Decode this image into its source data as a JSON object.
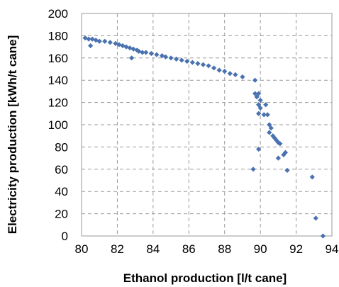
{
  "chart_data": {
    "type": "scatter",
    "title": "",
    "xlabel": "Ethanol production [l/t cane]",
    "ylabel": "Electricity production [kWh/t cane]",
    "xlim": [
      80,
      94
    ],
    "ylim": [
      0,
      200
    ],
    "x_ticks": [
      "80",
      "82",
      "84",
      "86",
      "88",
      "90",
      "92",
      "94"
    ],
    "y_ticks": [
      "0",
      "20",
      "40",
      "60",
      "80",
      "100",
      "120",
      "140",
      "160",
      "180",
      "200"
    ],
    "grid": true,
    "marker": "diamond",
    "color": "#4a72b0",
    "series": [
      {
        "points": [
          [
            80.2,
            178
          ],
          [
            80.4,
            177
          ],
          [
            80.6,
            177
          ],
          [
            80.8,
            176
          ],
          [
            81.0,
            175
          ],
          [
            80.5,
            171
          ],
          [
            81.3,
            175
          ],
          [
            81.6,
            174
          ],
          [
            81.9,
            173
          ],
          [
            82.1,
            172
          ],
          [
            82.3,
            171
          ],
          [
            82.5,
            170
          ],
          [
            82.7,
            169
          ],
          [
            82.9,
            168
          ],
          [
            83.1,
            167
          ],
          [
            83.2,
            166
          ],
          [
            83.4,
            165
          ],
          [
            83.6,
            165
          ],
          [
            83.9,
            164
          ],
          [
            84.2,
            163
          ],
          [
            84.5,
            162
          ],
          [
            84.7,
            161
          ],
          [
            82.8,
            160
          ],
          [
            85.0,
            160
          ],
          [
            85.3,
            159
          ],
          [
            85.6,
            158
          ],
          [
            85.9,
            157
          ],
          [
            86.2,
            156
          ],
          [
            86.5,
            155
          ],
          [
            86.8,
            154
          ],
          [
            87.1,
            153
          ],
          [
            87.4,
            151
          ],
          [
            87.7,
            149
          ],
          [
            88.0,
            148
          ],
          [
            88.3,
            146
          ],
          [
            88.6,
            145
          ],
          [
            89.0,
            143
          ],
          [
            89.7,
            140
          ],
          [
            89.7,
            128
          ],
          [
            89.9,
            128
          ],
          [
            89.8,
            125
          ],
          [
            90.0,
            122
          ],
          [
            90.3,
            118
          ],
          [
            89.9,
            118
          ],
          [
            90.0,
            115
          ],
          [
            90.2,
            109
          ],
          [
            90.4,
            109
          ],
          [
            89.9,
            110
          ],
          [
            90.5,
            100
          ],
          [
            90.6,
            97
          ],
          [
            90.5,
            93
          ],
          [
            90.7,
            90
          ],
          [
            90.8,
            88
          ],
          [
            90.9,
            86
          ],
          [
            91.0,
            84
          ],
          [
            91.1,
            83
          ],
          [
            89.9,
            78
          ],
          [
            91.4,
            75
          ],
          [
            91.3,
            73
          ],
          [
            91.0,
            70
          ],
          [
            89.6,
            60
          ],
          [
            91.5,
            59
          ],
          [
            92.9,
            53
          ],
          [
            93.1,
            16
          ],
          [
            93.5,
            0
          ]
        ]
      }
    ]
  }
}
